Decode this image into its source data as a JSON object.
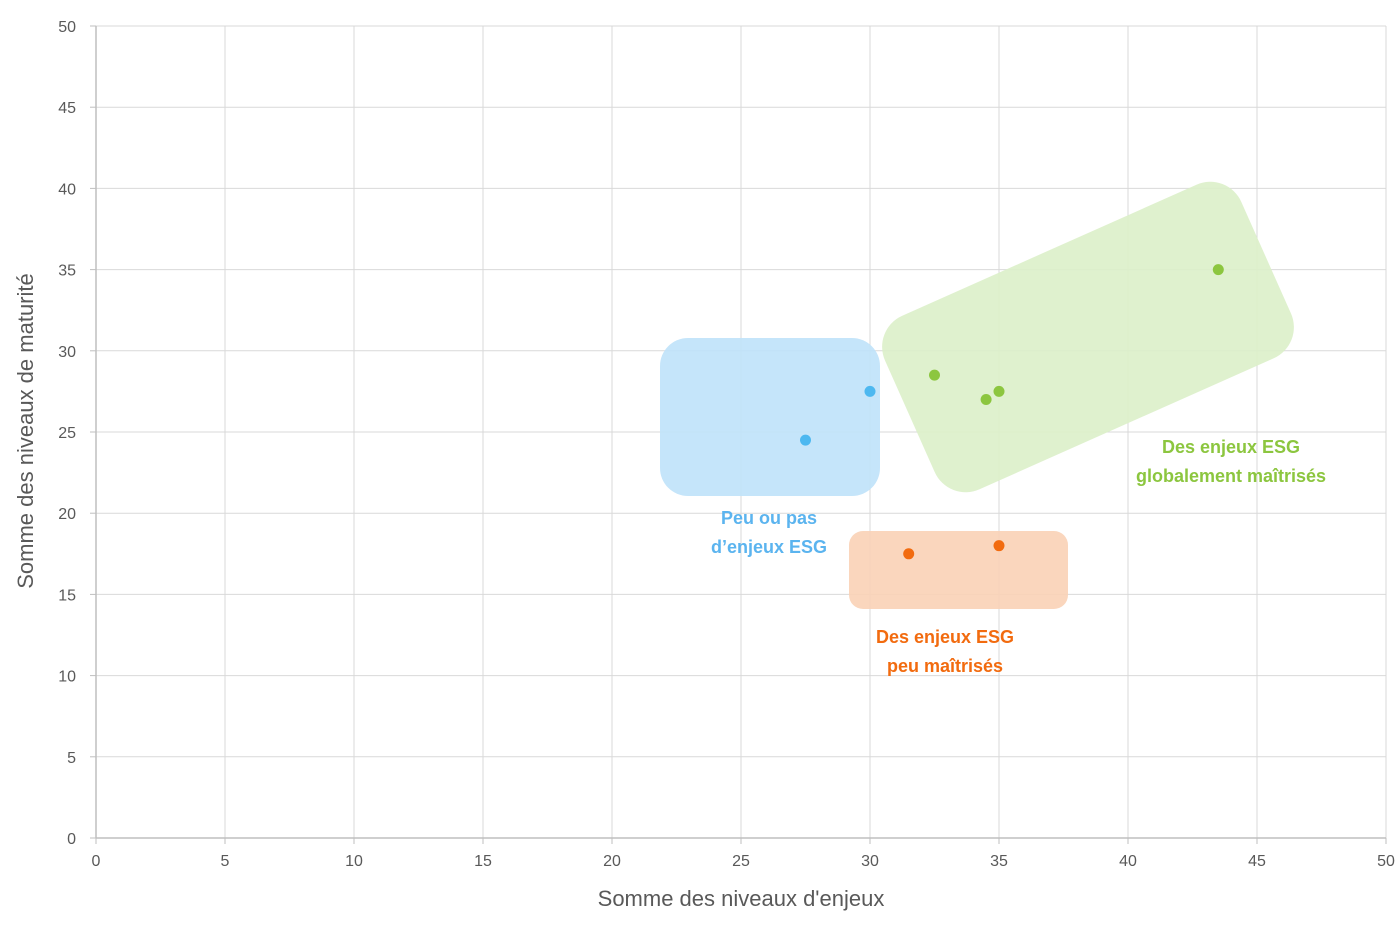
{
  "chart_data": {
    "type": "scatter",
    "title": "",
    "xlabel": "Somme des niveaux d'enjeux",
    "ylabel": "Somme des niveaux de maturité",
    "xlim": [
      0,
      50
    ],
    "ylim": [
      0,
      50
    ],
    "x_ticks": [
      0,
      5,
      10,
      15,
      20,
      25,
      30,
      35,
      40,
      45,
      50
    ],
    "y_ticks": [
      0,
      5,
      10,
      15,
      20,
      25,
      30,
      35,
      40,
      45,
      50
    ],
    "grid": true,
    "legend": "none",
    "series": [
      {
        "color": "#4db8f0",
        "points": [
          [
            27.5,
            24.5
          ],
          [
            30,
            27.5
          ]
        ]
      },
      {
        "color": "#8cc63f",
        "points": [
          [
            32.5,
            28.5
          ],
          [
            34.5,
            27
          ],
          [
            35,
            27.5
          ],
          [
            43.5,
            35
          ]
        ]
      },
      {
        "color": "#f26b0f",
        "points": [
          [
            31.5,
            17.5
          ],
          [
            35,
            18
          ]
        ]
      }
    ],
    "annotations": [
      {
        "lines": [
          "Peu ou pas",
          "d’enjeux ESG"
        ],
        "color": "#5bb4ef",
        "fill": "#bfe2fa",
        "region": "blue"
      },
      {
        "lines": [
          "Des enjeux ESG",
          "globalement maîtrisés"
        ],
        "color": "#8cc63f",
        "fill": "#dcefc9",
        "region": "green"
      },
      {
        "lines": [
          "Des enjeux ESG",
          "peu maîtrisés"
        ],
        "color": "#f26b0f",
        "fill": "#fad1b6",
        "region": "orange"
      }
    ]
  }
}
